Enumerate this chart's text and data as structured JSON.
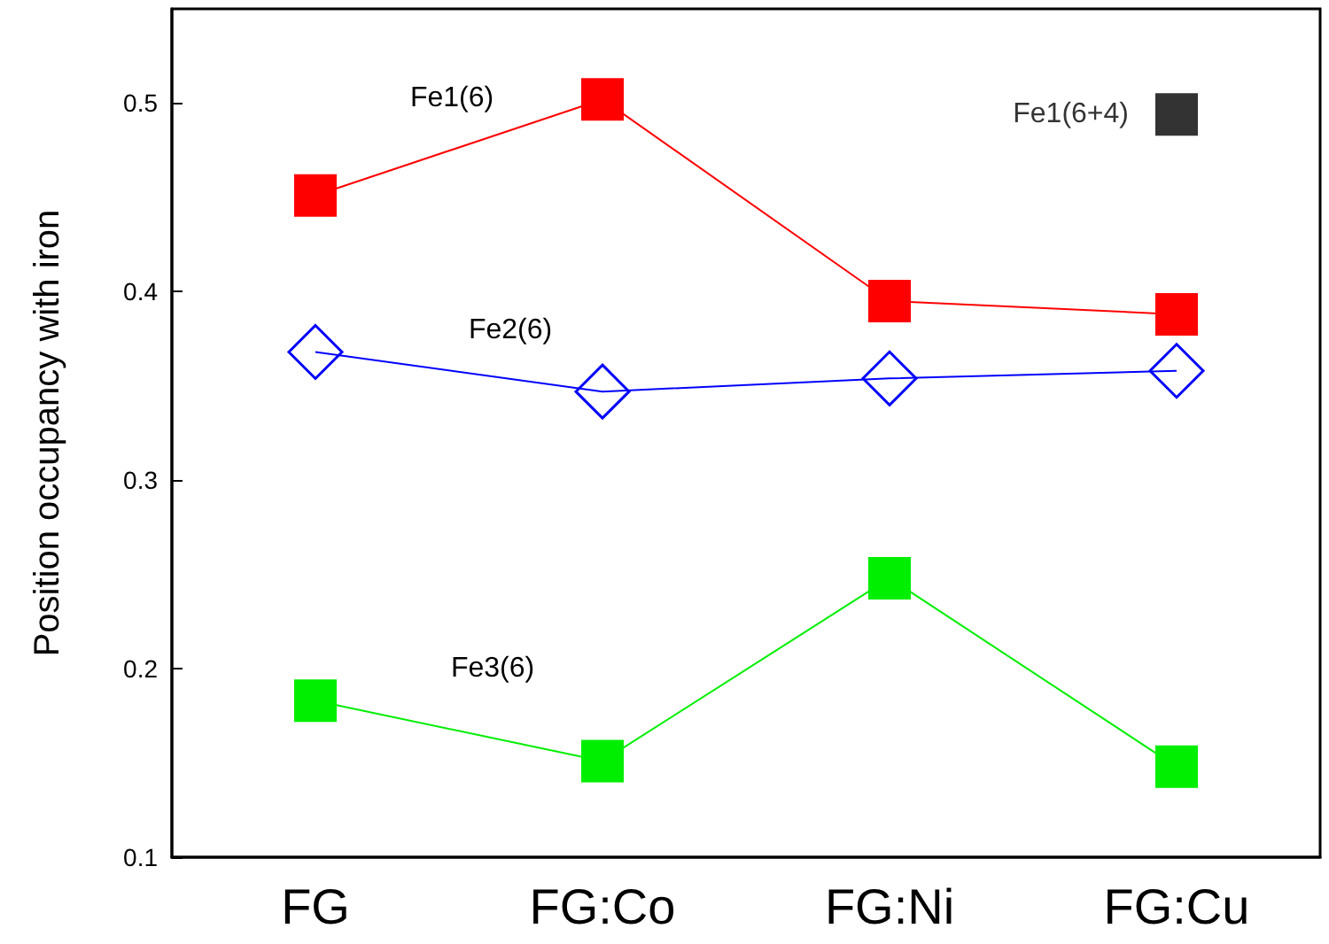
{
  "chart_data": {
    "type": "line",
    "ylabel": "Position occupancy with iron",
    "categories": [
      "FG",
      "FG:Co",
      "FG:Ni",
      "FG:Cu"
    ],
    "ylim": [
      0.1,
      0.55
    ],
    "yticks": [
      0.1,
      0.2,
      0.3,
      0.4,
      0.5
    ],
    "grid": false,
    "legend": false,
    "series": [
      {
        "name": "Fe1(6)",
        "color": "#ff0000",
        "marker": "square",
        "values": [
          0.451,
          0.502,
          0.395,
          0.388
        ]
      },
      {
        "name": "Fe2(6)",
        "color": "#0000ff",
        "marker": "diamond",
        "values": [
          0.368,
          0.347,
          0.354,
          0.358
        ]
      },
      {
        "name": "Fe3(6)",
        "color": "#00ee00",
        "marker": "square",
        "values": [
          0.183,
          0.151,
          0.248,
          0.148
        ]
      },
      {
        "name": "Fe1(6+4)",
        "type": "scatter",
        "color": "#000000",
        "marker": "square",
        "values": [
          null,
          null,
          null,
          0.494
        ]
      }
    ]
  }
}
